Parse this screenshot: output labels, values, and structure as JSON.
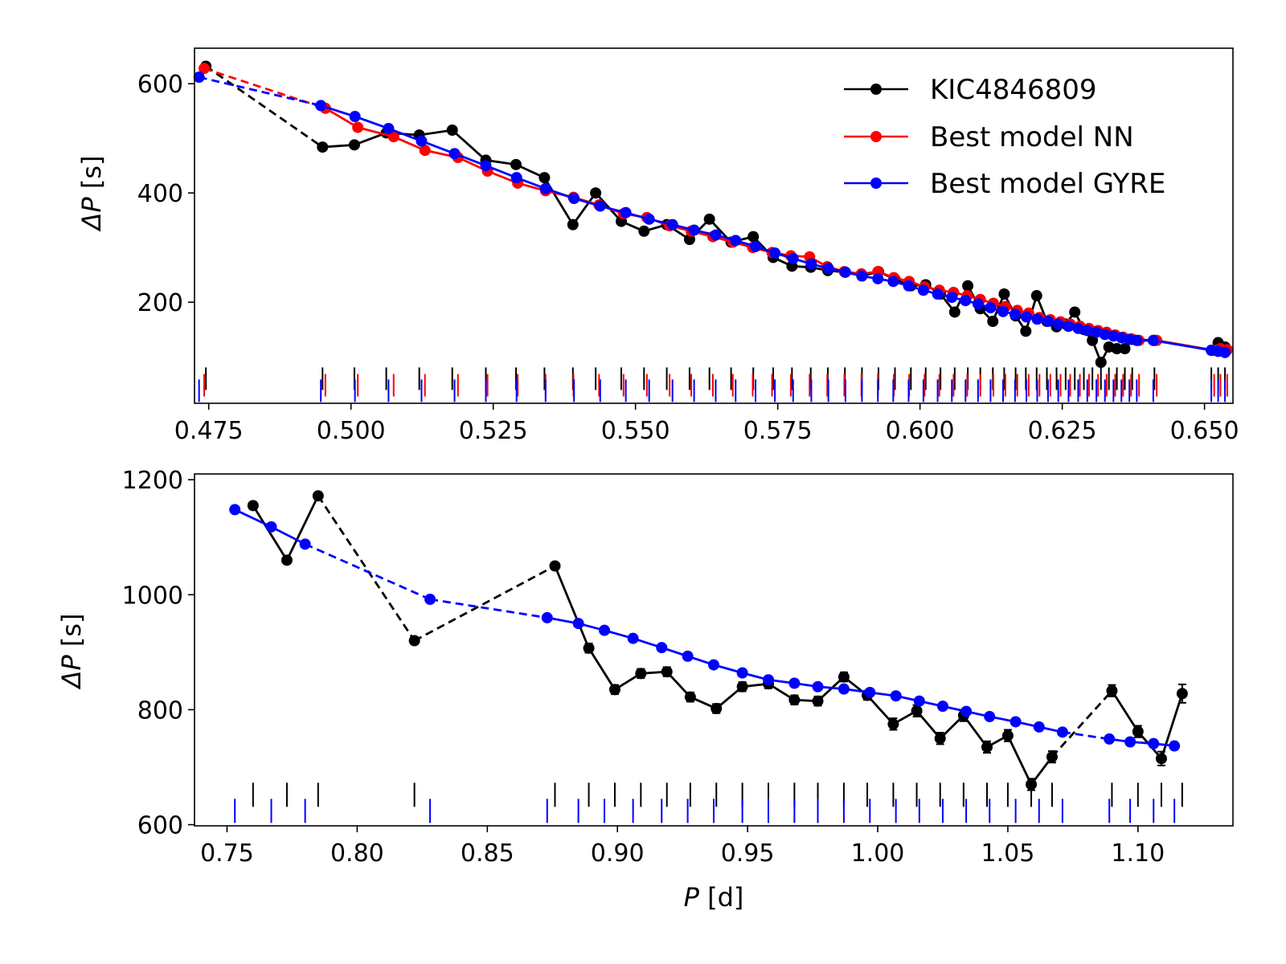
{
  "colors": {
    "observed": "#000000",
    "nn": "#ff0000",
    "gyre": "#0000ff"
  },
  "legend": {
    "observed": "KIC4846809",
    "nn": "Best model NN",
    "gyre": "Best model GYRE"
  },
  "labels": {
    "top_ylabel_main": "ΔP",
    "top_ylabel_unit": " [s]",
    "bottom_ylabel_main": "ΔP",
    "bottom_ylabel_unit": " [s]",
    "xlabel_main": "P",
    "xlabel_unit": " [d]"
  },
  "chart_data": [
    {
      "type": "line",
      "panel": "top",
      "xlim": [
        0.4725,
        0.655
      ],
      "ylim": [
        15,
        665
      ],
      "xticks": [
        "0.475",
        "0.500",
        "0.525",
        "0.550",
        "0.575",
        "0.600",
        "0.625",
        "0.650"
      ],
      "xtick_values": [
        0.475,
        0.5,
        0.525,
        0.55,
        0.575,
        0.6,
        0.625,
        0.65
      ],
      "yticks": [
        "200",
        "400",
        "600"
      ],
      "ytick_values": [
        200,
        400,
        600
      ],
      "legend_position": "top-right",
      "series": [
        {
          "name": "KIC4846809",
          "color_key": "observed",
          "x": [
            0.4745,
            0.495,
            0.5006,
            0.5062,
            0.512,
            0.5178,
            0.5237,
            0.529,
            0.534,
            0.539,
            0.543,
            0.5475,
            0.5515,
            0.5555,
            0.5595,
            0.563,
            0.5668,
            0.5707,
            0.5742,
            0.5775,
            0.5808,
            0.5838,
            0.5868,
            0.5898,
            0.5927,
            0.5956,
            0.5984,
            0.601,
            0.6036,
            0.6061,
            0.6084,
            0.6106,
            0.6128,
            0.6148,
            0.6168,
            0.6186,
            0.6205,
            0.6223,
            0.624,
            0.6256,
            0.6272,
            0.6288,
            0.6303,
            0.6318,
            0.6332,
            0.6346,
            0.636,
            0.6373,
            0.6412,
            0.6512,
            0.6524,
            0.6536
          ],
          "y": [
            632,
            484,
            488,
            510,
            506,
            515,
            460,
            452,
            428,
            342,
            400,
            348,
            330,
            342,
            315,
            352,
            310,
            320,
            282,
            266,
            264,
            258,
            255,
            248,
            256,
            242,
            230,
            232,
            215,
            182,
            230,
            188,
            165,
            215,
            175,
            147,
            212,
            165,
            155,
            160,
            182,
            150,
            130,
            90,
            118,
            115,
            115,
            132,
            130,
            112,
            126,
            118
          ],
          "dashed_segments": [
            0,
            46
          ],
          "tick_row_y": 60
        },
        {
          "name": "Best model NN",
          "color_key": "nn",
          "x": [
            0.4742,
            0.4955,
            0.5012,
            0.5075,
            0.513,
            0.5188,
            0.524,
            0.5293,
            0.5342,
            0.5391,
            0.5436,
            0.5479,
            0.552,
            0.556,
            0.5598,
            0.5636,
            0.5671,
            0.5706,
            0.574,
            0.5773,
            0.5806,
            0.5837,
            0.5867,
            0.5897,
            0.5926,
            0.5954,
            0.5981,
            0.6008,
            0.6034,
            0.6059,
            0.6083,
            0.6106,
            0.6129,
            0.615,
            0.6171,
            0.6191,
            0.621,
            0.6229,
            0.6247,
            0.6264,
            0.6281,
            0.6297,
            0.6313,
            0.6328,
            0.6343,
            0.6357,
            0.6371,
            0.6385,
            0.6416,
            0.6517,
            0.6528,
            0.654
          ],
          "y": [
            628,
            555,
            520,
            503,
            478,
            465,
            440,
            418,
            404,
            392,
            378,
            362,
            355,
            340,
            330,
            320,
            310,
            300,
            291,
            285,
            283,
            265,
            256,
            252,
            256,
            245,
            238,
            228,
            222,
            218,
            212,
            205,
            198,
            192,
            185,
            180,
            172,
            168,
            164,
            160,
            156,
            152,
            148,
            145,
            140,
            136,
            133,
            130,
            130,
            112,
            115,
            113
          ],
          "dashed_segments": [
            0
          ],
          "tick_row_y": 48
        },
        {
          "name": "Best model GYRE",
          "color_key": "gyre",
          "x": [
            0.4733,
            0.4947,
            0.5007,
            0.5066,
            0.5124,
            0.5182,
            0.5237,
            0.5291,
            0.5342,
            0.5392,
            0.5438,
            0.5483,
            0.5524,
            0.5565,
            0.5603,
            0.5641,
            0.5676,
            0.5711,
            0.5745,
            0.5777,
            0.5809,
            0.5839,
            0.5869,
            0.5898,
            0.5926,
            0.5953,
            0.598,
            0.6006,
            0.6031,
            0.6056,
            0.608,
            0.6102,
            0.6124,
            0.6146,
            0.6167,
            0.6187,
            0.6206,
            0.6225,
            0.6243,
            0.6261,
            0.6278,
            0.6294,
            0.631,
            0.6325,
            0.634,
            0.6354,
            0.6368,
            0.6381,
            0.641,
            0.6512,
            0.6524,
            0.6536
          ],
          "y": [
            612,
            560,
            540,
            518,
            495,
            472,
            450,
            428,
            408,
            390,
            376,
            364,
            352,
            342,
            332,
            323,
            313,
            302,
            290,
            280,
            270,
            262,
            255,
            248,
            243,
            238,
            230,
            222,
            215,
            209,
            203,
            197,
            190,
            183,
            178,
            173,
            169,
            165,
            160,
            156,
            152,
            148,
            145,
            141,
            138,
            135,
            132,
            130,
            130,
            112,
            110,
            108
          ],
          "dashed_segments": [
            0
          ],
          "tick_row_y": 38
        }
      ]
    },
    {
      "type": "line",
      "panel": "bottom",
      "xlim": [
        0.7375,
        1.1365
      ],
      "ylim": [
        598,
        1210
      ],
      "xticks": [
        "0.75",
        "0.80",
        "0.85",
        "0.90",
        "0.95",
        "1.00",
        "1.05",
        "1.10"
      ],
      "xtick_values": [
        0.75,
        0.8,
        0.85,
        0.9,
        0.95,
        1.0,
        1.05,
        1.1
      ],
      "yticks": [
        "600",
        "800",
        "1000",
        "1200"
      ],
      "ytick_values": [
        600,
        800,
        1000,
        1200
      ],
      "series": [
        {
          "name": "KIC4846809",
          "color_key": "observed",
          "x": [
            0.76,
            0.773,
            0.785,
            0.822,
            0.876,
            0.889,
            0.899,
            0.909,
            0.919,
            0.928,
            0.938,
            0.948,
            0.958,
            0.968,
            0.977,
            0.987,
            0.996,
            1.006,
            1.015,
            1.024,
            1.033,
            1.042,
            1.05,
            1.059,
            1.067,
            1.09,
            1.1,
            1.109,
            1.117
          ],
          "y": [
            1155,
            1060,
            1172,
            920,
            1050,
            907,
            835,
            863,
            866,
            822,
            802,
            840,
            845,
            817,
            815,
            857,
            825,
            775,
            798,
            750,
            790,
            735,
            755,
            670,
            718,
            833,
            762,
            715,
            828
          ],
          "yerr": [
            6,
            6,
            6,
            6,
            6,
            8,
            8,
            8,
            8,
            8,
            8,
            8,
            8,
            8,
            8,
            8,
            8,
            10,
            10,
            10,
            10,
            10,
            10,
            10,
            10,
            10,
            10,
            12,
            16
          ],
          "dashed_segments": [
            2,
            3,
            24
          ],
          "tick_row_y": 652
        },
        {
          "name": "Best model GYRE",
          "color_key": "gyre",
          "x": [
            0.753,
            0.767,
            0.78,
            0.828,
            0.873,
            0.885,
            0.895,
            0.906,
            0.917,
            0.927,
            0.937,
            0.948,
            0.958,
            0.968,
            0.977,
            0.987,
            0.997,
            1.007,
            1.016,
            1.025,
            1.034,
            1.043,
            1.053,
            1.062,
            1.071,
            1.089,
            1.097,
            1.106,
            1.114
          ],
          "y": [
            1148,
            1118,
            1088,
            992,
            960,
            950,
            938,
            924,
            908,
            893,
            878,
            864,
            852,
            846,
            840,
            836,
            830,
            824,
            815,
            806,
            797,
            788,
            779,
            770,
            761,
            749,
            744,
            741,
            737
          ],
          "dashed_segments": [
            2,
            3,
            24
          ],
          "tick_row_y": 624
        }
      ]
    }
  ]
}
